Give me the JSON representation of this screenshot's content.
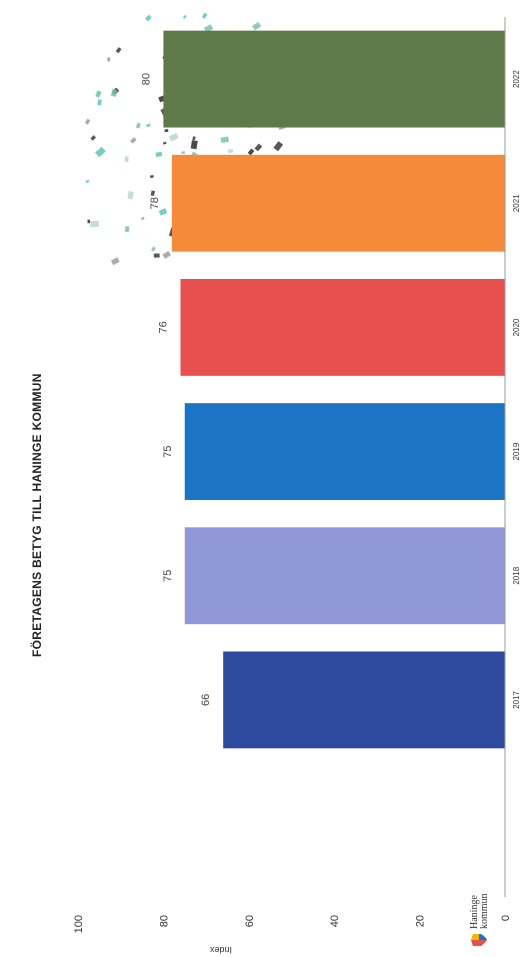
{
  "chart_data": {
    "type": "bar",
    "title": "FÖRETAGENS BETYG TILL HANINGE KOMMUN",
    "ylabel": "Index",
    "xlabel": "",
    "categories": [
      "2017",
      "2018",
      "2019",
      "2020",
      "2021",
      "2022"
    ],
    "values": [
      66,
      75,
      75,
      76,
      78,
      80
    ],
    "value_labels": [
      "66",
      "75",
      "75",
      "76",
      "78",
      "80"
    ],
    "ylim": [
      0,
      100
    ],
    "yticks": [
      "0",
      "20",
      "40",
      "60",
      "80",
      "100"
    ],
    "colors": [
      "#2e4a9e",
      "#8f97d6",
      "#1b74c6",
      "#e8504f",
      "#f48a3a",
      "#5e7a4b"
    ],
    "grid": false,
    "legend": "none"
  },
  "logo": {
    "line1": "Haninge",
    "line2": "kommun"
  }
}
